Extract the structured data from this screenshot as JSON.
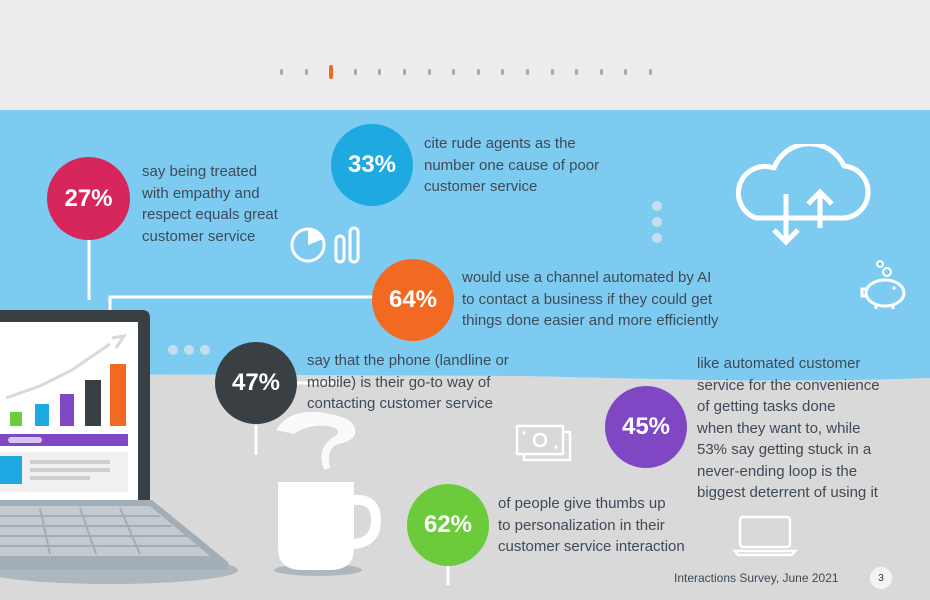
{
  "pager": {
    "count": 16,
    "active_index": 2
  },
  "colors": {
    "sky": "#7ecbf2",
    "floor": "#d9d9d9",
    "red": "#d7265b",
    "blue": "#1ea9e1",
    "orange": "#f26a21",
    "charcoal": "#3a3f44",
    "purple": "#8047c5",
    "green": "#6bcb3b"
  },
  "stats": {
    "empathy": {
      "percent": "27%",
      "lines": [
        "say being treated",
        "with empathy and",
        "respect equals great",
        "customer service"
      ]
    },
    "rude": {
      "percent": "33%",
      "lines": [
        "cite rude agents as the",
        "number one cause of poor",
        "customer service"
      ]
    },
    "ai": {
      "percent": "64%",
      "lines": [
        "would use a channel automated by AI",
        "to contact a business if they could get",
        "things done easier and more efficiently"
      ]
    },
    "phone": {
      "percent": "47%",
      "lines": [
        "say that the phone (landline or",
        "mobile) is their go-to way of",
        "contacting customer service"
      ]
    },
    "automated": {
      "percent": "45%",
      "lines": [
        "like automated customer",
        "service for the convenience",
        "of getting tasks done",
        "when they want to, while",
        "53% say getting stuck in a",
        "never-ending loop is the",
        "biggest deterrent of using it"
      ]
    },
    "personal": {
      "percent": "62%",
      "lines": [
        "of people give thumbs up",
        "to personalization in their",
        "customer service interaction"
      ]
    }
  },
  "icons": {
    "cloud": "cloud-sync-icon",
    "piggy": "piggy-bank-icon",
    "money": "money-bills-icon",
    "laptop_small": "laptop-icon",
    "pie": "pie-chart-icon",
    "mug": "coffee-mug-icon",
    "laptop_big": "laptop-growth-chart-icon"
  },
  "footer": {
    "source": "Interactions Survey, June 2021",
    "page": "3"
  }
}
